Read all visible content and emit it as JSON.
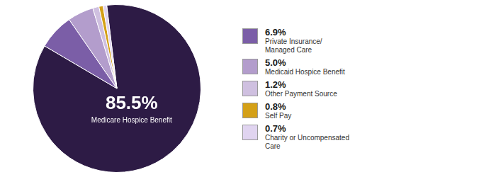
{
  "chart_data": {
    "type": "pie",
    "categories": [
      "Medicare Hospice Benefit",
      "Private Insurance/\nManaged Care",
      "Medicaid Hospice Benefit",
      "Other Payment Source",
      "Self Pay",
      "Charity or Uncompensated\nCare"
    ],
    "values": [
      85.5,
      6.9,
      5.0,
      1.2,
      0.8,
      0.7
    ],
    "value_labels": [
      "85.5%",
      "6.9%",
      "5.0%",
      "1.2%",
      "0.8%",
      "0.7%"
    ],
    "colors": [
      "#2d1b45",
      "#7b5ea7",
      "#b39dcc",
      "#cfc0e0",
      "#d4a017",
      "#e0d4f0"
    ],
    "legend": "right"
  }
}
